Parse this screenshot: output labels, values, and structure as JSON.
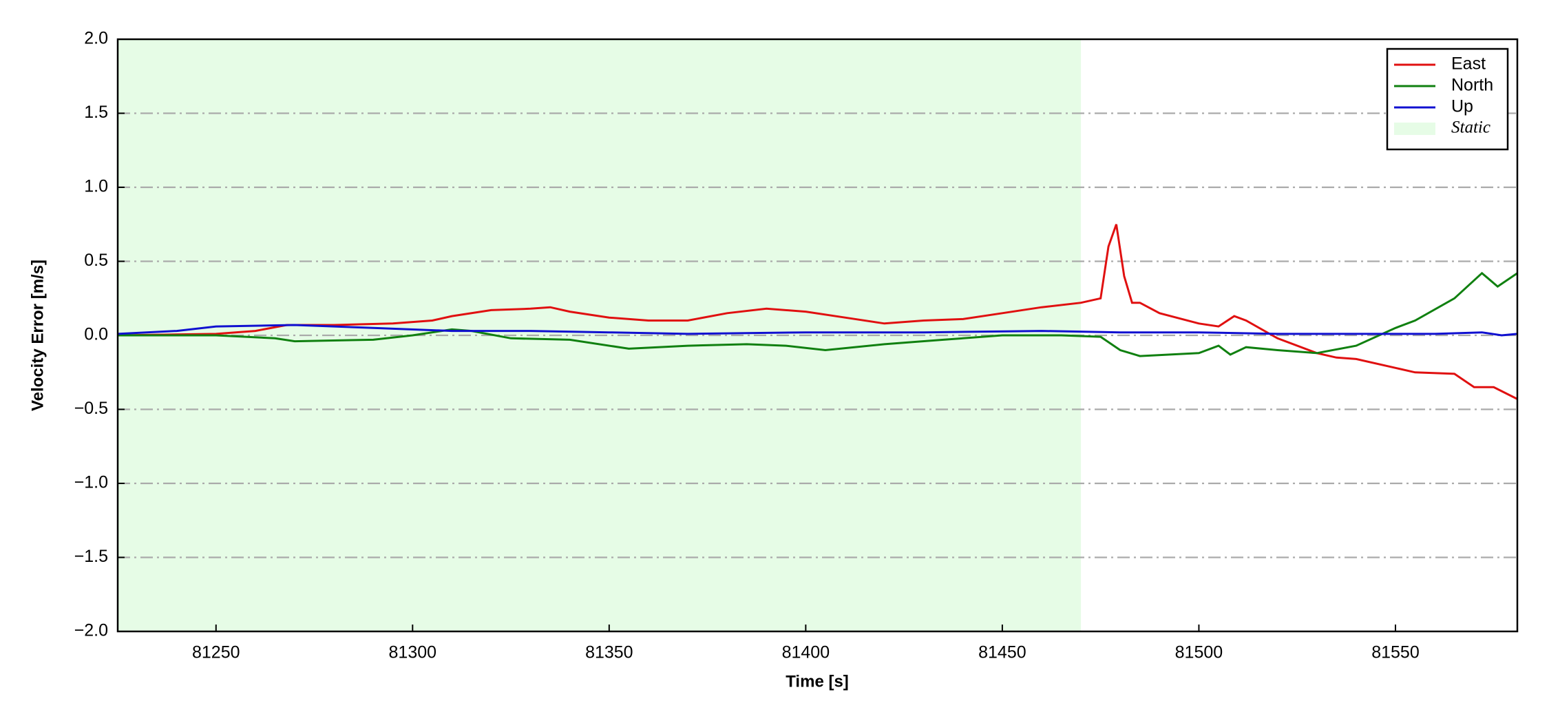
{
  "chart_data": {
    "type": "line",
    "xlabel": "Time [s]",
    "ylabel": "Velocity Error [m/s]",
    "xlim": [
      81225,
      81581
    ],
    "ylim": [
      -2,
      2
    ],
    "xticks": [
      81250,
      81300,
      81350,
      81400,
      81450,
      81500,
      81550
    ],
    "yticks": [
      {
        "value": -2,
        "label": "−2.0"
      },
      {
        "value": -1.5,
        "label": "−1.5"
      },
      {
        "value": -1,
        "label": "−1.0"
      },
      {
        "value": -0.5,
        "label": "−0.5"
      },
      {
        "value": 0,
        "label": "0.0"
      },
      {
        "value": 0.5,
        "label": "0.5"
      },
      {
        "value": 1,
        "label": "1.0"
      },
      {
        "value": 1.5,
        "label": "1.5"
      },
      {
        "value": 2,
        "label": "2.0"
      }
    ],
    "grid": true,
    "legend": "upper right",
    "span": {
      "name": "Static",
      "start": 81225,
      "end": 81470,
      "color": "#e6fce6"
    },
    "series": [
      {
        "name": "East",
        "color": "#e01010",
        "x": [
          81225,
          81250,
          81260,
          81268,
          81280,
          81295,
          81305,
          81310,
          81320,
          81330,
          81335,
          81340,
          81350,
          81360,
          81370,
          81380,
          81390,
          81400,
          81410,
          81420,
          81430,
          81440,
          81450,
          81460,
          81470,
          81475,
          81477,
          81479,
          81481,
          81483,
          81485,
          81490,
          81500,
          81505,
          81509,
          81512,
          81520,
          81530,
          81535,
          81540,
          81550,
          81555,
          81565,
          81570,
          81575,
          81581
        ],
        "values": [
          0,
          0.01,
          0.03,
          0.07,
          0.07,
          0.08,
          0.1,
          0.13,
          0.17,
          0.18,
          0.19,
          0.16,
          0.12,
          0.1,
          0.1,
          0.15,
          0.18,
          0.16,
          0.12,
          0.08,
          0.1,
          0.11,
          0.15,
          0.19,
          0.22,
          0.25,
          0.6,
          0.75,
          0.4,
          0.22,
          0.22,
          0.15,
          0.08,
          0.06,
          0.13,
          0.1,
          -0.02,
          -0.12,
          -0.15,
          -0.16,
          -0.22,
          -0.25,
          -0.26,
          -0.35,
          -0.35,
          -0.43
        ]
      },
      {
        "name": "North",
        "color": "#108010",
        "x": [
          81225,
          81250,
          81265,
          81270,
          81290,
          81300,
          81310,
          81315,
          81325,
          81340,
          81355,
          81370,
          81385,
          81395,
          81405,
          81420,
          81435,
          81450,
          81465,
          81475,
          81480,
          81485,
          81500,
          81505,
          81508,
          81512,
          81520,
          81530,
          81540,
          81550,
          81555,
          81565,
          81572,
          81576,
          81581
        ],
        "values": [
          0,
          0,
          -0.02,
          -0.04,
          -0.03,
          0,
          0.04,
          0.03,
          -0.02,
          -0.03,
          -0.09,
          -0.07,
          -0.06,
          -0.07,
          -0.1,
          -0.06,
          -0.03,
          0,
          0,
          -0.01,
          -0.1,
          -0.14,
          -0.12,
          -0.07,
          -0.13,
          -0.08,
          -0.1,
          -0.12,
          -0.07,
          0.05,
          0.1,
          0.25,
          0.42,
          0.33,
          0.42
        ]
      },
      {
        "name": "Up",
        "color": "#1010d0",
        "x": [
          81225,
          81240,
          81250,
          81270,
          81290,
          81310,
          81330,
          81350,
          81370,
          81400,
          81430,
          81460,
          81480,
          81500,
          81520,
          81560,
          81572,
          81577,
          81581
        ],
        "values": [
          0.01,
          0.03,
          0.06,
          0.07,
          0.05,
          0.03,
          0.03,
          0.02,
          0.01,
          0.02,
          0.02,
          0.03,
          0.02,
          0.02,
          0.01,
          0.01,
          0.02,
          0,
          0.01
        ]
      }
    ]
  }
}
